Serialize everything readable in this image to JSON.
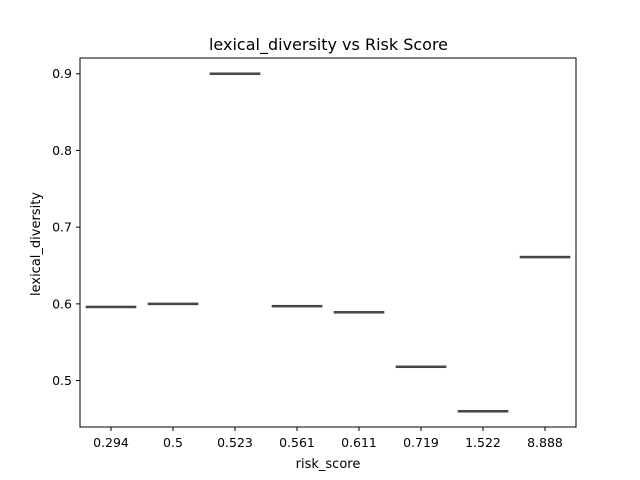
{
  "chart_data": {
    "type": "box",
    "title": "lexical_diversity vs Risk Score",
    "xlabel": "risk_score",
    "ylabel": "lexical_diversity",
    "categories": [
      "0.294",
      "0.5",
      "0.523",
      "0.561",
      "0.611",
      "0.719",
      "1.522",
      "8.888"
    ],
    "values": [
      0.596,
      0.6,
      0.9,
      0.597,
      0.589,
      0.518,
      0.46,
      0.661
    ],
    "y_ticks": [
      0.5,
      0.6,
      0.7,
      0.8,
      0.9
    ],
    "y_tick_labels": [
      "0.5",
      "0.6",
      "0.7",
      "0.8",
      "0.9"
    ],
    "ylim": [
      0.4395,
      0.9205
    ],
    "grid": false,
    "legend": "none",
    "colors": {
      "box_line": "#3f3f3f",
      "axes": "#000000"
    }
  }
}
